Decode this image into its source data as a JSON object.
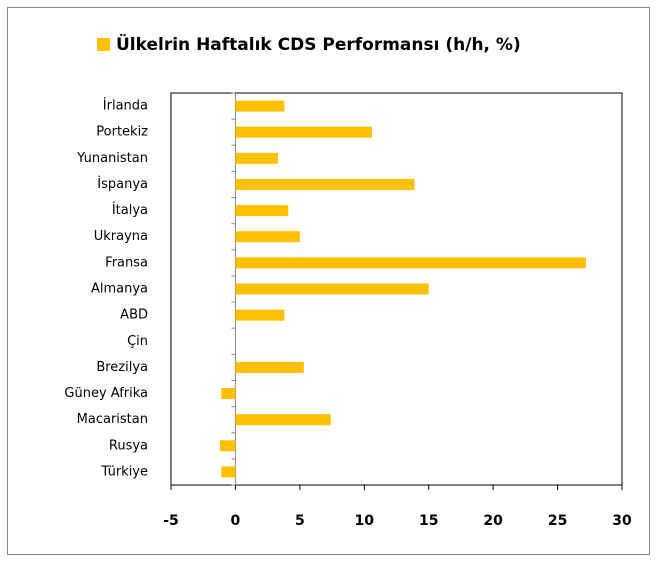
{
  "chart_data": {
    "type": "barh",
    "title": "Ülkelrin Haftalık CDS Performansı (h/h, %)",
    "categories": [
      "İrlanda",
      "Portekiz",
      "Yunanistan",
      "İspanya",
      "İtalya",
      "Ukrayna",
      "Fransa",
      "Almanya",
      "ABD",
      "Çin",
      "Brezilya",
      "Güney Afrika",
      "Macaristan",
      "Rusya",
      "Türkiye"
    ],
    "values": [
      3.8,
      10.6,
      3.3,
      13.9,
      4.1,
      5.0,
      27.2,
      15.0,
      3.8,
      0,
      5.3,
      -1.1,
      7.4,
      -1.2,
      -1.1
    ],
    "color": "#FFC000",
    "xlim": [
      -5,
      30
    ],
    "xticks": [
      -5,
      0,
      5,
      10,
      15,
      20,
      25,
      30
    ],
    "grid": false
  }
}
